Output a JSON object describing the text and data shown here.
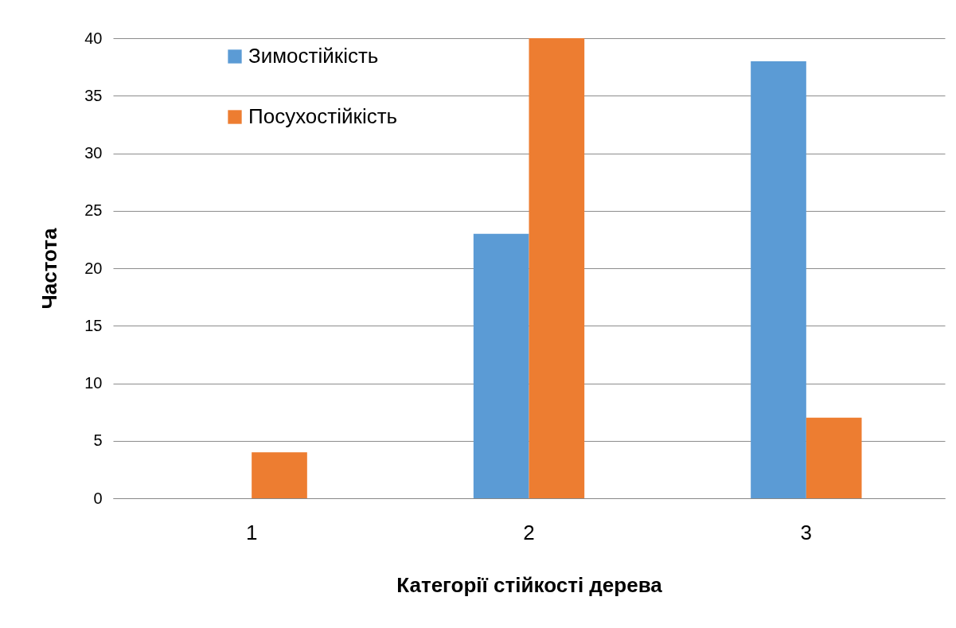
{
  "chart_data": {
    "type": "bar",
    "xlabel": "Категорії стійкості дерева",
    "ylabel": "Частота",
    "categories": [
      "1",
      "2",
      "3"
    ],
    "series": [
      {
        "name": "Зимостійкість",
        "color": "#5b9bd5",
        "values": [
          0,
          23,
          38
        ]
      },
      {
        "name": "Посухостійкість",
        "color": "#ed7d31",
        "values": [
          4,
          40,
          7
        ]
      }
    ],
    "ylim": [
      0,
      40
    ],
    "yticks": [
      0,
      5,
      10,
      15,
      20,
      25,
      30,
      35,
      40
    ],
    "grid": "y",
    "legend": "top left"
  }
}
